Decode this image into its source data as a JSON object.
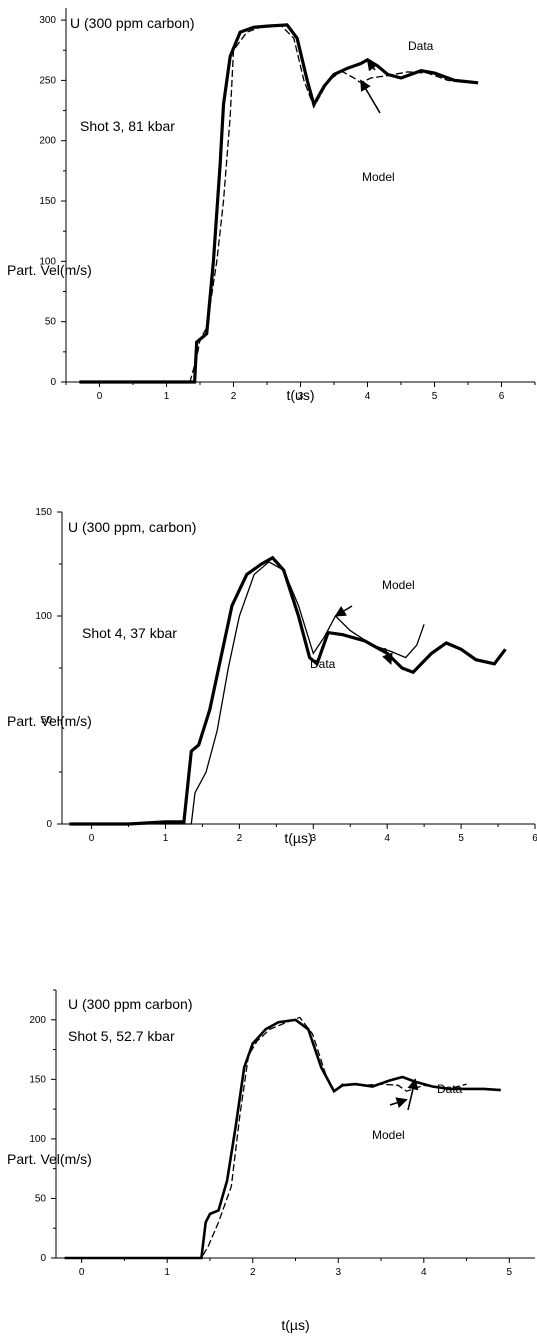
{
  "chart_data": [
    {
      "type": "line",
      "title": "U (300 ppm carbon)",
      "subtitle": "Shot 3, 81 kbar",
      "xlabel": "t(us)",
      "ylabel": "Part. Vel(m/s)",
      "xlim": [
        -0.5,
        6.5
      ],
      "ylim": [
        0,
        310
      ],
      "xticks": [
        0,
        1,
        2,
        3,
        4,
        5,
        6
      ],
      "yticks": [
        0,
        50,
        100,
        150,
        200,
        250,
        300
      ],
      "grid": false,
      "annotations": [
        {
          "text": "Data",
          "target": [
            4.0,
            267
          ]
        },
        {
          "text": "Model",
          "target": [
            3.9,
            250
          ]
        }
      ],
      "series": [
        {
          "label": "Data",
          "x": [
            -0.3,
            0.3,
            0.8,
            1.2,
            1.42,
            1.45,
            1.6,
            1.7,
            1.8,
            1.85,
            1.95,
            2.1,
            2.3,
            2.5,
            2.8,
            2.95,
            3.1,
            3.2,
            3.35,
            3.5,
            3.7,
            3.9,
            4.0,
            4.15,
            4.3,
            4.5,
            4.8,
            5.0,
            5.3,
            5.65
          ],
          "y": [
            0,
            0,
            0,
            0,
            0,
            33,
            40,
            100,
            180,
            230,
            270,
            290,
            294,
            295,
            296,
            285,
            250,
            230,
            245,
            255,
            260,
            264,
            267,
            262,
            255,
            252,
            258,
            256,
            250,
            248
          ]
        },
        {
          "label": "Model",
          "x": [
            -0.3,
            0.8,
            1.35,
            1.45,
            1.5,
            1.6,
            1.75,
            1.85,
            1.95,
            2.0,
            2.2,
            2.4,
            2.7,
            2.9,
            3.05,
            3.2,
            3.4,
            3.6,
            3.8,
            3.9,
            4.05,
            4.3,
            4.6,
            4.9,
            5.2,
            5.65
          ],
          "y": [
            0,
            0,
            0,
            20,
            35,
            45,
            100,
            150,
            220,
            275,
            290,
            294,
            296,
            285,
            250,
            228,
            248,
            258,
            252,
            248,
            252,
            254,
            257,
            256,
            250,
            248
          ]
        }
      ]
    },
    {
      "type": "line",
      "title": "U (300 ppm, carbon)",
      "subtitle": "Shot 4, 37 kbar",
      "xlabel": "t(µs)",
      "ylabel": "Part. Vel(m/s)",
      "xlim": [
        -0.4,
        6.0
      ],
      "ylim": [
        0,
        150
      ],
      "xticks": [
        0,
        1,
        2,
        3,
        4,
        5,
        6
      ],
      "yticks": [
        0,
        50,
        100,
        150
      ],
      "grid": false,
      "annotations": [
        {
          "text": "Model",
          "target": [
            3.3,
            100
          ]
        },
        {
          "text": "Data",
          "target": [
            4.05,
            77
          ]
        }
      ],
      "series": [
        {
          "label": "Data",
          "x": [
            -0.3,
            0.5,
            1.0,
            1.25,
            1.35,
            1.45,
            1.6,
            1.75,
            1.9,
            2.1,
            2.3,
            2.45,
            2.6,
            2.8,
            2.95,
            3.05,
            3.2,
            3.4,
            3.7,
            4.0,
            4.2,
            4.35,
            4.6,
            4.8,
            5.0,
            5.2,
            5.45,
            5.6
          ],
          "y": [
            0,
            0,
            1,
            1,
            35,
            38,
            55,
            80,
            105,
            120,
            125,
            128,
            122,
            100,
            80,
            77,
            92,
            91,
            88,
            82,
            75,
            73,
            82,
            87,
            84,
            79,
            77,
            84
          ]
        },
        {
          "label": "Model",
          "x": [
            -0.3,
            1.0,
            1.35,
            1.4,
            1.55,
            1.7,
            1.85,
            2.0,
            2.2,
            2.4,
            2.6,
            2.8,
            3.0,
            3.15,
            3.3,
            3.5,
            3.8,
            4.05,
            4.25,
            4.4,
            4.5
          ],
          "y": [
            0,
            0,
            0,
            15,
            25,
            45,
            75,
            100,
            120,
            126,
            122,
            105,
            82,
            90,
            100,
            93,
            86,
            83,
            80,
            86,
            96
          ]
        }
      ]
    },
    {
      "type": "line",
      "title": "U  (300 ppm carbon)",
      "subtitle": "Shot 5, 52.7 kbar",
      "xlabel": "t(µs)",
      "ylabel": "Part. Vel(m/s)",
      "xlim": [
        -0.3,
        5.3
      ],
      "ylim": [
        0,
        225
      ],
      "xticks": [
        0,
        1,
        2,
        3,
        4,
        5
      ],
      "yticks": [
        0,
        50,
        100,
        150,
        200
      ],
      "grid": false,
      "annotations": [
        {
          "text": "Data",
          "target": [
            3.9,
            150
          ]
        },
        {
          "text": "Model",
          "target": [
            3.8,
            133
          ]
        }
      ],
      "series": [
        {
          "label": "Data",
          "x": [
            -0.2,
            0.5,
            1.0,
            1.4,
            1.45,
            1.5,
            1.6,
            1.7,
            1.8,
            1.9,
            2.0,
            2.15,
            2.3,
            2.5,
            2.65,
            2.8,
            2.95,
            3.05,
            3.2,
            3.4,
            3.6,
            3.75,
            3.9,
            4.1,
            4.3,
            4.5,
            4.7,
            4.9
          ],
          "y": [
            0,
            0,
            0,
            0,
            30,
            37,
            40,
            65,
            110,
            160,
            180,
            192,
            198,
            200,
            192,
            160,
            140,
            145,
            146,
            144,
            149,
            152,
            148,
            144,
            142,
            142,
            142,
            141
          ]
        },
        {
          "label": "Model",
          "x": [
            -0.2,
            1.0,
            1.4,
            1.48,
            1.6,
            1.75,
            1.85,
            1.95,
            2.05,
            2.2,
            2.4,
            2.55,
            2.7,
            2.85,
            2.95,
            3.05,
            3.3,
            3.5,
            3.7,
            3.8,
            4.0,
            4.3,
            4.5
          ],
          "y": [
            0,
            0,
            0,
            10,
            30,
            60,
            120,
            170,
            182,
            192,
            198,
            202,
            188,
            155,
            140,
            146,
            145,
            146,
            145,
            140,
            145,
            142,
            146
          ]
        }
      ]
    }
  ]
}
